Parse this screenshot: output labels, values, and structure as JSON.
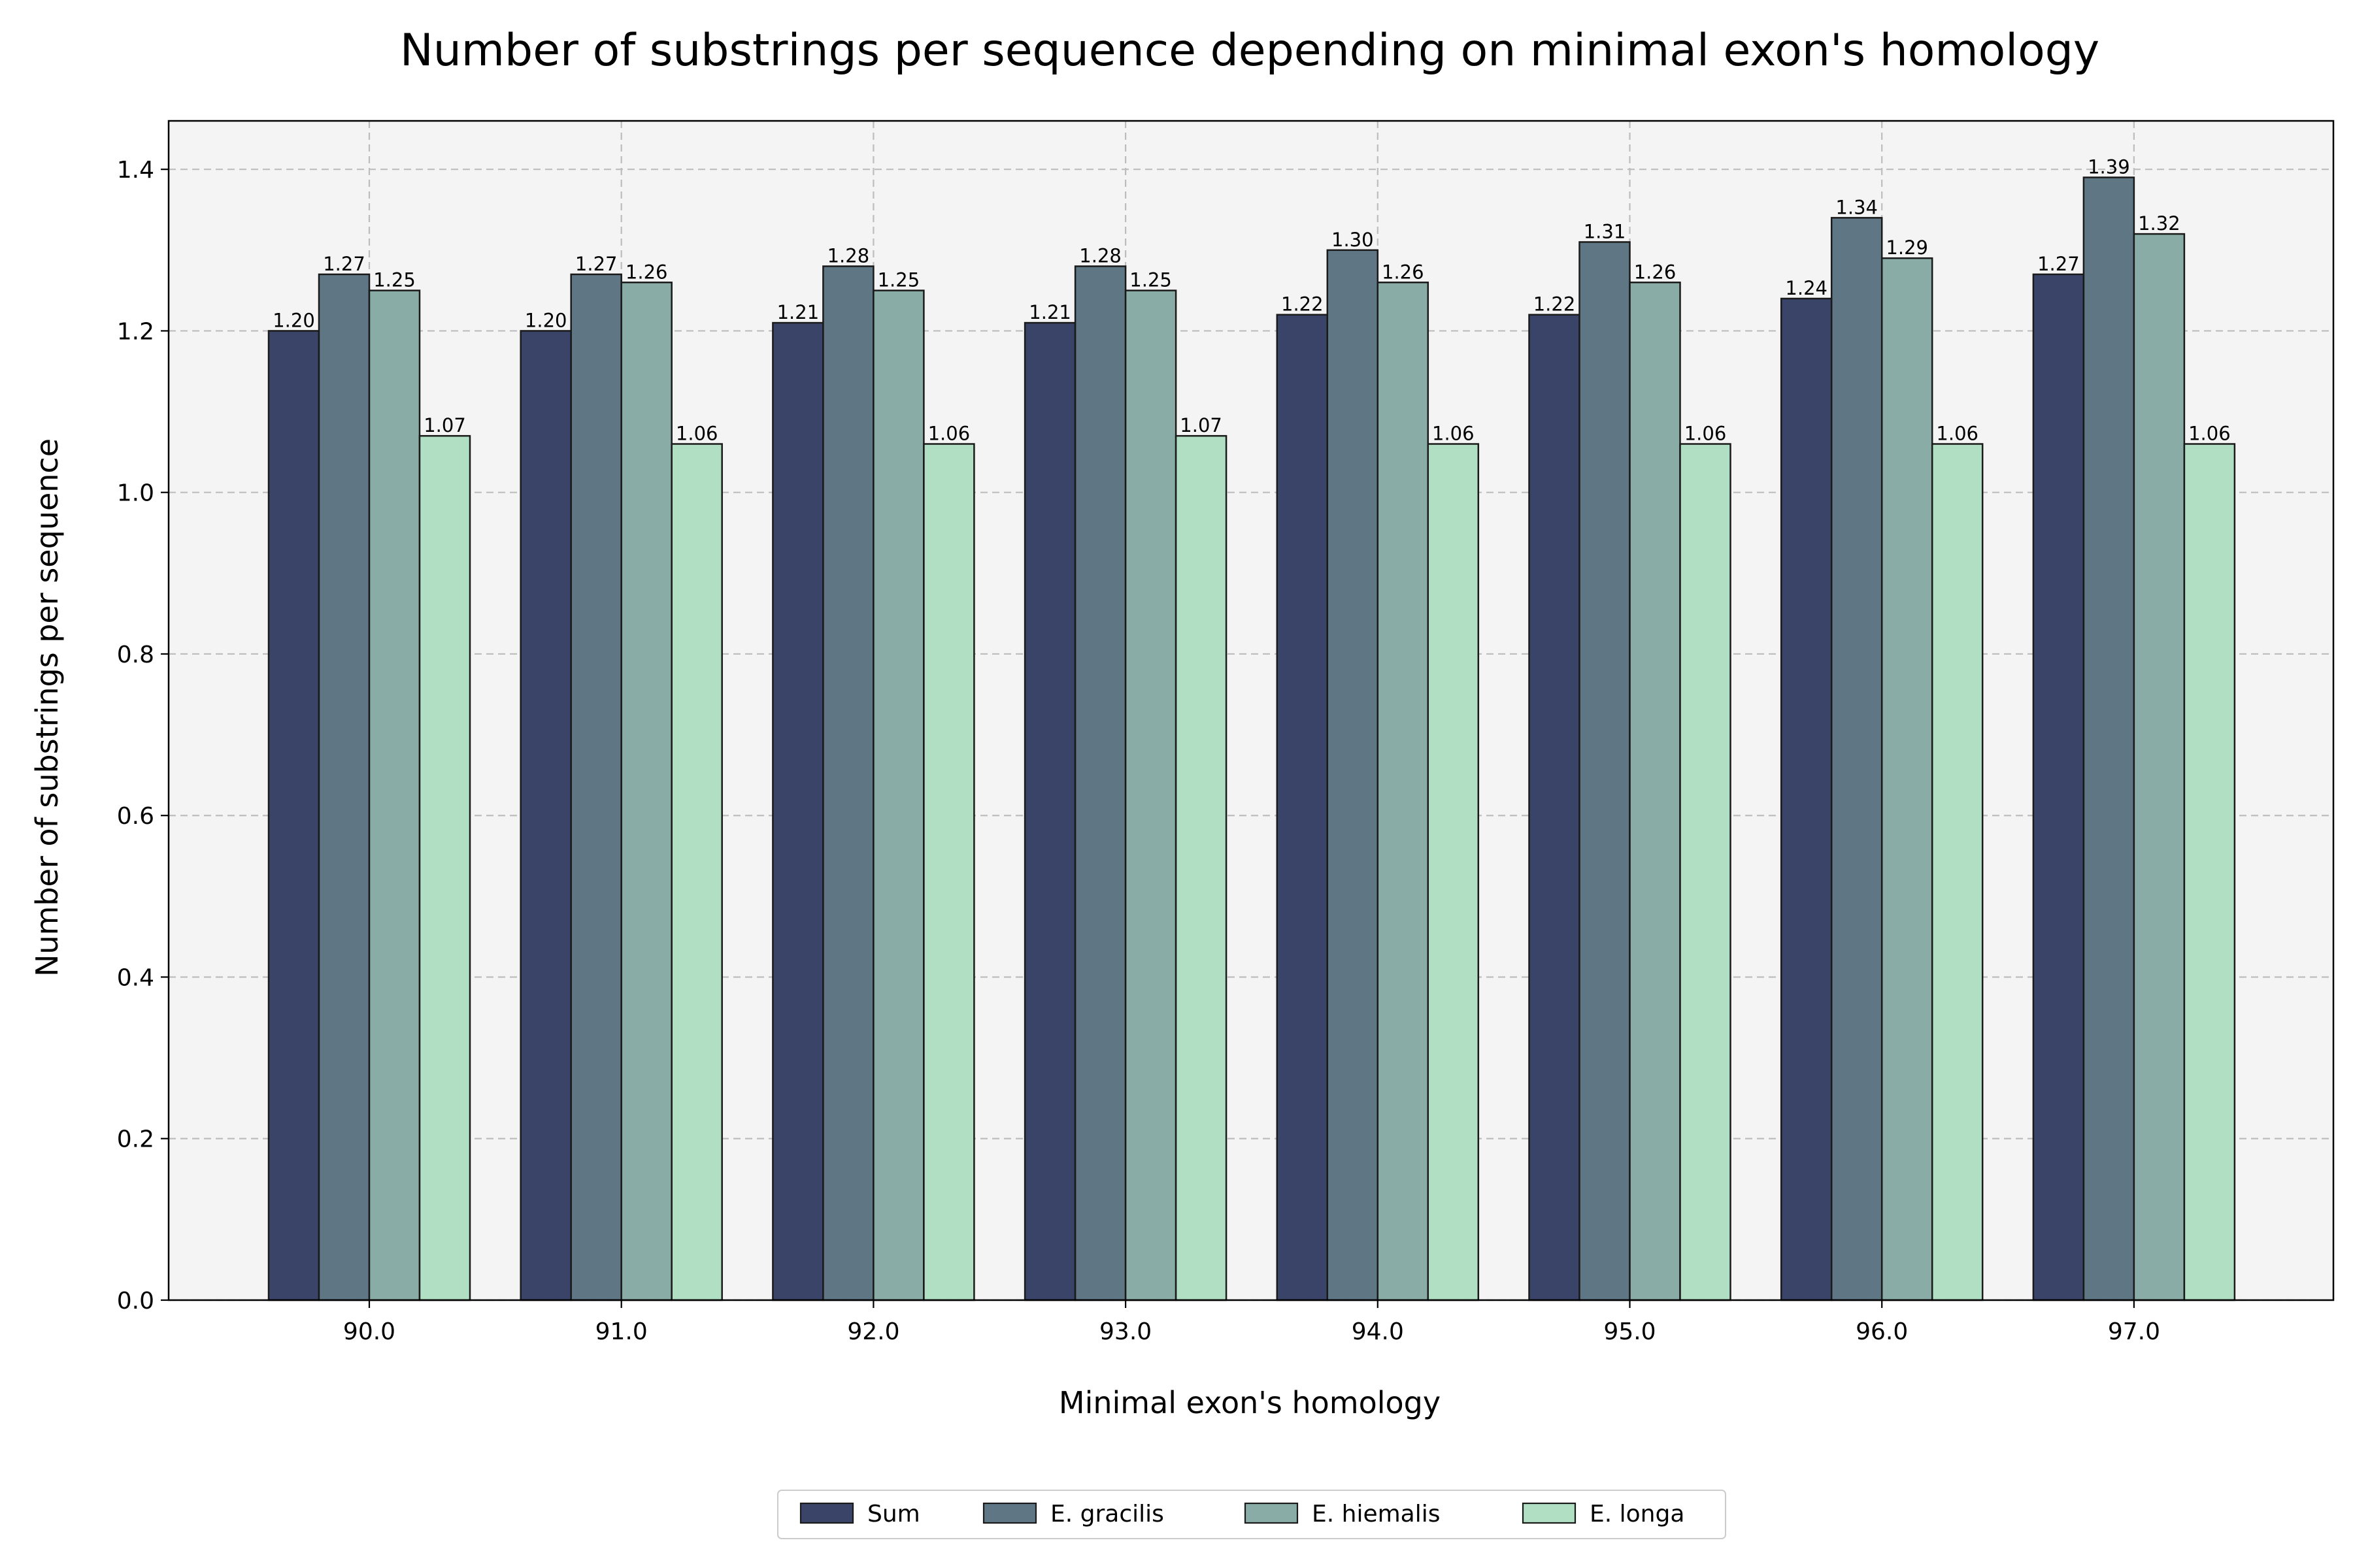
{
  "chart_data": {
    "type": "bar",
    "title": "Number of substrings per sequence depending on minimal exon's homology",
    "xlabel": "Minimal exon's homology",
    "ylabel": "Number of substrings per sequence",
    "categories": [
      "90.0",
      "91.0",
      "92.0",
      "93.0",
      "94.0",
      "95.0",
      "96.0",
      "97.0"
    ],
    "ylim": [
      0,
      1.46
    ],
    "yticks": [
      "0.0",
      "0.2",
      "0.4",
      "0.6",
      "0.8",
      "1.0",
      "1.2",
      "1.4"
    ],
    "grid": true,
    "legend_position": "bottom-center",
    "series": [
      {
        "name": "Sum",
        "color": "#3a4468",
        "values": [
          1.2,
          1.2,
          1.21,
          1.21,
          1.22,
          1.22,
          1.24,
          1.27
        ]
      },
      {
        "name": "E. gracilis",
        "color": "#5f7785",
        "values": [
          1.27,
          1.27,
          1.28,
          1.28,
          1.3,
          1.31,
          1.34,
          1.39
        ]
      },
      {
        "name": "E. hiemalis",
        "color": "#8aaca6",
        "values": [
          1.25,
          1.26,
          1.25,
          1.25,
          1.26,
          1.26,
          1.29,
          1.32
        ]
      },
      {
        "name": "E. longa",
        "color": "#b0dfc3",
        "values": [
          1.07,
          1.06,
          1.06,
          1.07,
          1.06,
          1.06,
          1.06,
          1.06
        ]
      }
    ]
  }
}
